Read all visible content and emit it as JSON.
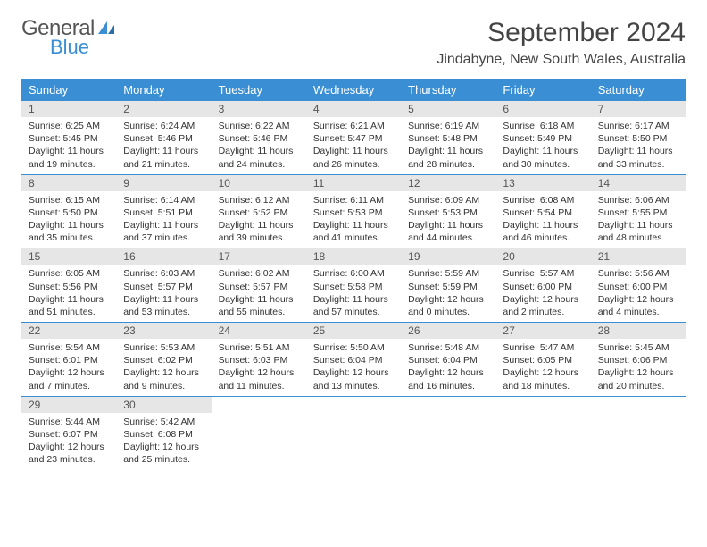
{
  "logo": {
    "text1": "General",
    "text2": "Blue"
  },
  "colors": {
    "accent": "#3a8fd4",
    "dayNumBg": "#e6e6e6"
  },
  "title": "September 2024",
  "location": "Jindabyne, New South Wales, Australia",
  "dayNames": [
    "Sunday",
    "Monday",
    "Tuesday",
    "Wednesday",
    "Thursday",
    "Friday",
    "Saturday"
  ],
  "days": [
    {
      "n": 1,
      "sunrise": "6:25 AM",
      "sunset": "5:45 PM",
      "daylight": "11 hours and 19 minutes."
    },
    {
      "n": 2,
      "sunrise": "6:24 AM",
      "sunset": "5:46 PM",
      "daylight": "11 hours and 21 minutes."
    },
    {
      "n": 3,
      "sunrise": "6:22 AM",
      "sunset": "5:46 PM",
      "daylight": "11 hours and 24 minutes."
    },
    {
      "n": 4,
      "sunrise": "6:21 AM",
      "sunset": "5:47 PM",
      "daylight": "11 hours and 26 minutes."
    },
    {
      "n": 5,
      "sunrise": "6:19 AM",
      "sunset": "5:48 PM",
      "daylight": "11 hours and 28 minutes."
    },
    {
      "n": 6,
      "sunrise": "6:18 AM",
      "sunset": "5:49 PM",
      "daylight": "11 hours and 30 minutes."
    },
    {
      "n": 7,
      "sunrise": "6:17 AM",
      "sunset": "5:50 PM",
      "daylight": "11 hours and 33 minutes."
    },
    {
      "n": 8,
      "sunrise": "6:15 AM",
      "sunset": "5:50 PM",
      "daylight": "11 hours and 35 minutes."
    },
    {
      "n": 9,
      "sunrise": "6:14 AM",
      "sunset": "5:51 PM",
      "daylight": "11 hours and 37 minutes."
    },
    {
      "n": 10,
      "sunrise": "6:12 AM",
      "sunset": "5:52 PM",
      "daylight": "11 hours and 39 minutes."
    },
    {
      "n": 11,
      "sunrise": "6:11 AM",
      "sunset": "5:53 PM",
      "daylight": "11 hours and 41 minutes."
    },
    {
      "n": 12,
      "sunrise": "6:09 AM",
      "sunset": "5:53 PM",
      "daylight": "11 hours and 44 minutes."
    },
    {
      "n": 13,
      "sunrise": "6:08 AM",
      "sunset": "5:54 PM",
      "daylight": "11 hours and 46 minutes."
    },
    {
      "n": 14,
      "sunrise": "6:06 AM",
      "sunset": "5:55 PM",
      "daylight": "11 hours and 48 minutes."
    },
    {
      "n": 15,
      "sunrise": "6:05 AM",
      "sunset": "5:56 PM",
      "daylight": "11 hours and 51 minutes."
    },
    {
      "n": 16,
      "sunrise": "6:03 AM",
      "sunset": "5:57 PM",
      "daylight": "11 hours and 53 minutes."
    },
    {
      "n": 17,
      "sunrise": "6:02 AM",
      "sunset": "5:57 PM",
      "daylight": "11 hours and 55 minutes."
    },
    {
      "n": 18,
      "sunrise": "6:00 AM",
      "sunset": "5:58 PM",
      "daylight": "11 hours and 57 minutes."
    },
    {
      "n": 19,
      "sunrise": "5:59 AM",
      "sunset": "5:59 PM",
      "daylight": "12 hours and 0 minutes."
    },
    {
      "n": 20,
      "sunrise": "5:57 AM",
      "sunset": "6:00 PM",
      "daylight": "12 hours and 2 minutes."
    },
    {
      "n": 21,
      "sunrise": "5:56 AM",
      "sunset": "6:00 PM",
      "daylight": "12 hours and 4 minutes."
    },
    {
      "n": 22,
      "sunrise": "5:54 AM",
      "sunset": "6:01 PM",
      "daylight": "12 hours and 7 minutes."
    },
    {
      "n": 23,
      "sunrise": "5:53 AM",
      "sunset": "6:02 PM",
      "daylight": "12 hours and 9 minutes."
    },
    {
      "n": 24,
      "sunrise": "5:51 AM",
      "sunset": "6:03 PM",
      "daylight": "12 hours and 11 minutes."
    },
    {
      "n": 25,
      "sunrise": "5:50 AM",
      "sunset": "6:04 PM",
      "daylight": "12 hours and 13 minutes."
    },
    {
      "n": 26,
      "sunrise": "5:48 AM",
      "sunset": "6:04 PM",
      "daylight": "12 hours and 16 minutes."
    },
    {
      "n": 27,
      "sunrise": "5:47 AM",
      "sunset": "6:05 PM",
      "daylight": "12 hours and 18 minutes."
    },
    {
      "n": 28,
      "sunrise": "5:45 AM",
      "sunset": "6:06 PM",
      "daylight": "12 hours and 20 minutes."
    },
    {
      "n": 29,
      "sunrise": "5:44 AM",
      "sunset": "6:07 PM",
      "daylight": "12 hours and 23 minutes."
    },
    {
      "n": 30,
      "sunrise": "5:42 AM",
      "sunset": "6:08 PM",
      "daylight": "12 hours and 25 minutes."
    }
  ],
  "labels": {
    "sunrise": "Sunrise:",
    "sunset": "Sunset:",
    "daylight": "Daylight:"
  }
}
